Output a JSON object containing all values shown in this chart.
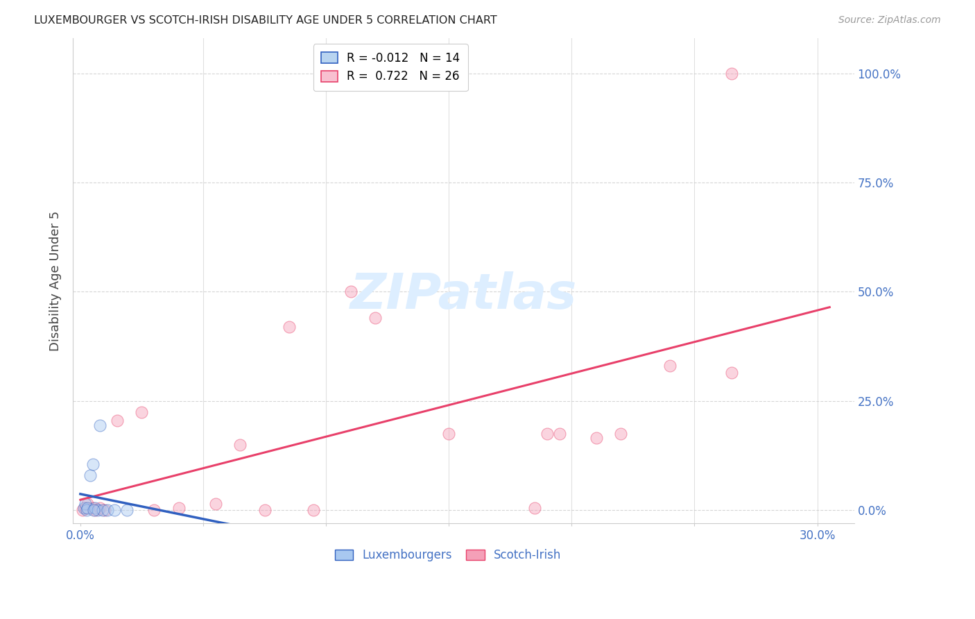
{
  "title": "LUXEMBOURGER VS SCOTCH-IRISH DISABILITY AGE UNDER 5 CORRELATION CHART",
  "source": "Source: ZipAtlas.com",
  "ylabel": "Disability Age Under 5",
  "x_ticks": [
    0.0,
    5.0,
    10.0,
    15.0,
    20.0,
    25.0,
    30.0
  ],
  "y_ticks": [
    0.0,
    25.0,
    50.0,
    75.0,
    100.0
  ],
  "y_tick_labels": [
    "0.0%",
    "25.0%",
    "50.0%",
    "75.0%",
    "100.0%"
  ],
  "xlim": [
    -0.3,
    31.5
  ],
  "ylim": [
    -3,
    108
  ],
  "luxembourger_x": [
    0.15,
    0.2,
    0.25,
    0.3,
    0.4,
    0.5,
    0.6,
    0.7,
    0.9,
    1.1,
    1.4,
    0.8,
    1.9,
    0.55
  ],
  "luxembourger_y": [
    0.5,
    1.5,
    0.0,
    0.5,
    8.0,
    10.5,
    0.5,
    0.0,
    0.0,
    0.0,
    0.0,
    19.5,
    0.0,
    0.0
  ],
  "scotcirish_x": [
    0.1,
    0.2,
    0.3,
    0.5,
    0.6,
    0.8,
    1.0,
    1.5,
    2.5,
    3.0,
    4.0,
    5.5,
    6.5,
    7.5,
    8.5,
    9.5,
    11.0,
    12.0,
    15.0,
    18.5,
    19.0,
    19.5,
    21.0,
    22.0,
    24.0,
    26.5
  ],
  "scotcirish_y": [
    0.0,
    0.5,
    1.5,
    0.5,
    0.0,
    0.5,
    0.0,
    20.5,
    22.5,
    0.0,
    0.5,
    1.5,
    15.0,
    0.0,
    42.0,
    0.0,
    50.0,
    44.0,
    17.5,
    0.5,
    17.5,
    17.5,
    16.5,
    17.5,
    33.0,
    31.5
  ],
  "scotcirish_outlier_x": 26.5,
  "scotcirish_outlier_y": 100.0,
  "lux_color": "#a8c8f0",
  "scotch_color": "#f4a0b8",
  "lux_line_color": "#3060c0",
  "scotch_line_color": "#e8406a",
  "lux_R": -0.012,
  "lux_N": 14,
  "scotch_R": 0.722,
  "scotch_N": 26,
  "marker_size": 150,
  "marker_alpha": 0.45,
  "grid_color": "#cccccc",
  "bg_color": "#ffffff",
  "title_color": "#222222",
  "axis_label_color": "#444444",
  "tick_label_color": "#4472c4",
  "lux_line_solid_end": 15.0,
  "legend_box_color_lux": "#b8d4f0",
  "legend_box_color_scotch": "#f8c0d0",
  "watermark": "ZIPatlas",
  "watermark_color": "#ddeeff"
}
